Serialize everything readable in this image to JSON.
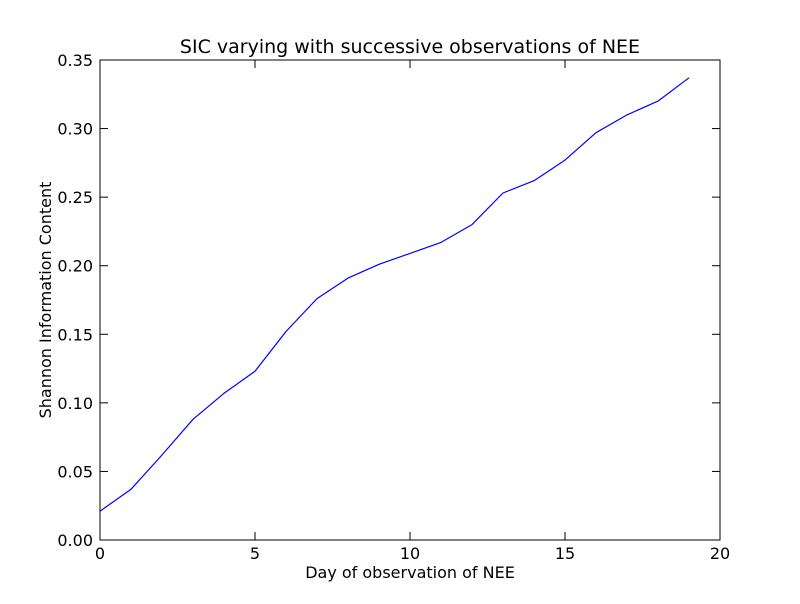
{
  "chart_data": {
    "type": "line",
    "title": "SIC varying with successive observations of NEE",
    "xlabel": "Day of observation of NEE",
    "ylabel": "Shannon Information Content",
    "xlim": [
      0,
      20
    ],
    "ylim": [
      0,
      0.35
    ],
    "xticks": [
      0,
      5,
      10,
      15,
      20
    ],
    "yticks": [
      0.0,
      0.05,
      0.1,
      0.15,
      0.2,
      0.25,
      0.3,
      0.35
    ],
    "xtick_labels": [
      "0",
      "5",
      "10",
      "15",
      "20"
    ],
    "ytick_labels": [
      "0.00",
      "0.05",
      "0.10",
      "0.15",
      "0.20",
      "0.25",
      "0.30",
      "0.35"
    ],
    "grid": false,
    "legend": "none",
    "line_color": "#0000ff",
    "series": [
      {
        "x": [
          0,
          1,
          2,
          3,
          4,
          5,
          6,
          7,
          8,
          9,
          10,
          11,
          12,
          13,
          14,
          15,
          16,
          17,
          18,
          19
        ],
        "values": [
          0.021,
          0.037,
          0.062,
          0.088,
          0.107,
          0.123,
          0.152,
          0.176,
          0.191,
          0.201,
          0.209,
          0.217,
          0.23,
          0.253,
          0.262,
          0.277,
          0.297,
          0.31,
          0.32,
          0.337
        ]
      }
    ]
  }
}
